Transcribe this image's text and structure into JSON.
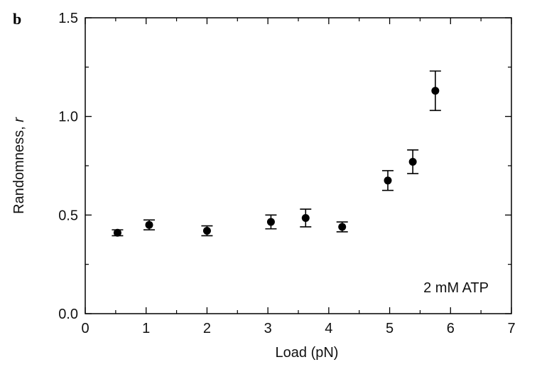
{
  "panel_label": "b",
  "chart_data": {
    "type": "scatter",
    "title": "",
    "xlabel": "Load (pN)",
    "ylabel_prefix": "Randomness, ",
    "ylabel_var": "r",
    "xlim": [
      0,
      7
    ],
    "ylim": [
      0,
      1.5
    ],
    "x_ticks": [
      "0",
      "1",
      "2",
      "3",
      "4",
      "5",
      "6",
      "7"
    ],
    "y_ticks": [
      "0.0",
      "0.5",
      "1.0",
      "1.5"
    ],
    "grid": false,
    "annotation": "2 mM ATP",
    "points": [
      {
        "x": 0.53,
        "y": 0.41,
        "err": 0.015
      },
      {
        "x": 1.05,
        "y": 0.45,
        "err": 0.025
      },
      {
        "x": 2.0,
        "y": 0.42,
        "err": 0.025
      },
      {
        "x": 3.05,
        "y": 0.465,
        "err": 0.035
      },
      {
        "x": 3.62,
        "y": 0.485,
        "err": 0.045
      },
      {
        "x": 4.22,
        "y": 0.44,
        "err": 0.025
      },
      {
        "x": 4.97,
        "y": 0.675,
        "err": 0.05
      },
      {
        "x": 5.38,
        "y": 0.77,
        "err": 0.06
      },
      {
        "x": 5.75,
        "y": 1.13,
        "err": 0.1
      }
    ]
  }
}
